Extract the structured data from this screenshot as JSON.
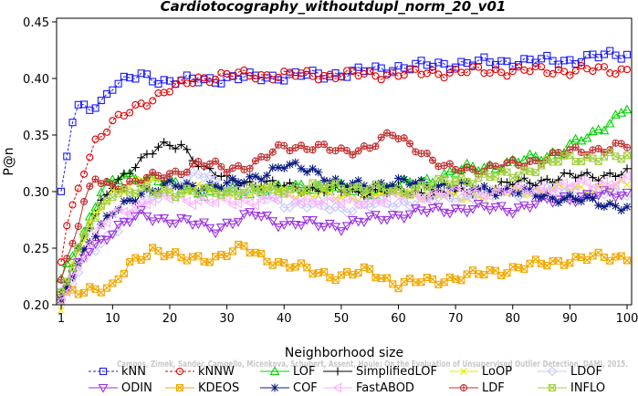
{
  "chart_data": {
    "type": "line",
    "title": "Cardiotocography_withoutdupl_norm_20_v01",
    "xlabel": "Neighborhood size",
    "ylabel": "P@n",
    "xlim": [
      1,
      100
    ],
    "ylim": [
      0.2,
      0.45
    ],
    "x_ticks": [
      "1",
      "10",
      "20",
      "30",
      "40",
      "50",
      "60",
      "70",
      "80",
      "90",
      "100"
    ],
    "y_ticks": [
      "0.20",
      "0.25",
      "0.30",
      "0.35",
      "0.40",
      "0.45"
    ],
    "grid": false,
    "legend_position": "bottom",
    "watermark": "Campos, Zimek, Sander, Campello, Micenkova, Schubert, Assent, Houle: On the Evaluation of Unsupervised Outlier Detection, DAMI, 2015.",
    "series": [
      {
        "name": "kNN",
        "color": "#1a1aff",
        "marker": "square",
        "dashed": true,
        "anchors": [
          [
            1,
            0.296
          ],
          [
            2,
            0.33
          ],
          [
            3,
            0.362
          ],
          [
            4,
            0.374
          ],
          [
            6,
            0.375
          ],
          [
            8,
            0.38
          ],
          [
            10,
            0.393
          ],
          [
            15,
            0.403
          ],
          [
            20,
            0.397
          ],
          [
            30,
            0.4
          ],
          [
            40,
            0.402
          ],
          [
            50,
            0.404
          ],
          [
            60,
            0.41
          ],
          [
            70,
            0.413
          ],
          [
            80,
            0.415
          ],
          [
            90,
            0.416
          ],
          [
            96,
            0.42
          ],
          [
            100,
            0.422
          ]
        ]
      },
      {
        "name": "kNNW",
        "color": "#e00000",
        "marker": "circle",
        "dashed": true,
        "anchors": [
          [
            1,
            0.238
          ],
          [
            2,
            0.27
          ],
          [
            3,
            0.285
          ],
          [
            5,
            0.32
          ],
          [
            7,
            0.345
          ],
          [
            10,
            0.36
          ],
          [
            15,
            0.378
          ],
          [
            20,
            0.39
          ],
          [
            25,
            0.4
          ],
          [
            30,
            0.403
          ],
          [
            40,
            0.403
          ],
          [
            50,
            0.403
          ],
          [
            60,
            0.404
          ],
          [
            70,
            0.406
          ],
          [
            80,
            0.407
          ],
          [
            90,
            0.407
          ],
          [
            100,
            0.408
          ]
        ]
      },
      {
        "name": "LOF",
        "color": "#00d000",
        "marker": "triangle-up",
        "dashed": false,
        "anchors": [
          [
            1,
            0.222
          ],
          [
            3,
            0.245
          ],
          [
            5,
            0.265
          ],
          [
            8,
            0.3
          ],
          [
            12,
            0.315
          ],
          [
            18,
            0.31
          ],
          [
            25,
            0.3
          ],
          [
            35,
            0.3
          ],
          [
            45,
            0.305
          ],
          [
            55,
            0.3
          ],
          [
            65,
            0.31
          ],
          [
            72,
            0.32
          ],
          [
            80,
            0.325
          ],
          [
            88,
            0.335
          ],
          [
            94,
            0.35
          ],
          [
            100,
            0.375
          ]
        ]
      },
      {
        "name": "SimplifiedLOF",
        "color": "#000000",
        "marker": "plus",
        "dashed": false,
        "anchors": [
          [
            1,
            0.21
          ],
          [
            3,
            0.238
          ],
          [
            6,
            0.27
          ],
          [
            10,
            0.305
          ],
          [
            14,
            0.325
          ],
          [
            18,
            0.338
          ],
          [
            22,
            0.342
          ],
          [
            26,
            0.32
          ],
          [
            30,
            0.31
          ],
          [
            40,
            0.305
          ],
          [
            50,
            0.3
          ],
          [
            60,
            0.3
          ],
          [
            70,
            0.298
          ],
          [
            80,
            0.307
          ],
          [
            90,
            0.313
          ],
          [
            100,
            0.316
          ]
        ]
      },
      {
        "name": "LoOP",
        "color": "#e8e800",
        "marker": "cross",
        "dashed": false,
        "anchors": [
          [
            1,
            0.2
          ],
          [
            3,
            0.235
          ],
          [
            6,
            0.27
          ],
          [
            10,
            0.3
          ],
          [
            15,
            0.31
          ],
          [
            20,
            0.305
          ],
          [
            30,
            0.3
          ],
          [
            40,
            0.3
          ],
          [
            50,
            0.295
          ],
          [
            60,
            0.3
          ],
          [
            70,
            0.295
          ],
          [
            80,
            0.3
          ],
          [
            90,
            0.302
          ],
          [
            100,
            0.305
          ]
        ]
      },
      {
        "name": "LDOF",
        "color": "#c8c8ff",
        "marker": "diamond",
        "dashed": false,
        "anchors": [
          [
            1,
            0.205
          ],
          [
            3,
            0.22
          ],
          [
            6,
            0.245
          ],
          [
            10,
            0.265
          ],
          [
            15,
            0.285
          ],
          [
            20,
            0.305
          ],
          [
            25,
            0.315
          ],
          [
            30,
            0.305
          ],
          [
            40,
            0.29
          ],
          [
            50,
            0.285
          ],
          [
            60,
            0.29
          ],
          [
            70,
            0.295
          ],
          [
            80,
            0.3
          ],
          [
            90,
            0.3
          ],
          [
            100,
            0.298
          ]
        ]
      },
      {
        "name": "ODIN",
        "color": "#9a30e0",
        "marker": "triangle-down",
        "dashed": false,
        "anchors": [
          [
            1,
            0.205
          ],
          [
            3,
            0.225
          ],
          [
            6,
            0.25
          ],
          [
            10,
            0.265
          ],
          [
            15,
            0.28
          ],
          [
            20,
            0.275
          ],
          [
            28,
            0.268
          ],
          [
            35,
            0.28
          ],
          [
            40,
            0.272
          ],
          [
            50,
            0.27
          ],
          [
            60,
            0.28
          ],
          [
            70,
            0.285
          ],
          [
            80,
            0.285
          ],
          [
            90,
            0.295
          ],
          [
            100,
            0.298
          ]
        ]
      },
      {
        "name": "KDEOS",
        "color": "#f0a800",
        "marker": "square-x",
        "dashed": false,
        "anchors": [
          [
            1,
            0.205
          ],
          [
            3,
            0.21
          ],
          [
            6,
            0.215
          ],
          [
            10,
            0.215
          ],
          [
            13,
            0.235
          ],
          [
            17,
            0.25
          ],
          [
            22,
            0.24
          ],
          [
            28,
            0.242
          ],
          [
            33,
            0.25
          ],
          [
            40,
            0.235
          ],
          [
            50,
            0.225
          ],
          [
            55,
            0.23
          ],
          [
            60,
            0.218
          ],
          [
            67,
            0.222
          ],
          [
            72,
            0.225
          ],
          [
            80,
            0.232
          ],
          [
            90,
            0.24
          ],
          [
            100,
            0.243
          ]
        ]
      },
      {
        "name": "COF",
        "color": "#0a1a80",
        "marker": "asterisk",
        "dashed": false,
        "anchors": [
          [
            1,
            0.2
          ],
          [
            3,
            0.228
          ],
          [
            6,
            0.258
          ],
          [
            10,
            0.28
          ],
          [
            15,
            0.3
          ],
          [
            20,
            0.305
          ],
          [
            30,
            0.305
          ],
          [
            40,
            0.322
          ],
          [
            45,
            0.32
          ],
          [
            50,
            0.305
          ],
          [
            60,
            0.308
          ],
          [
            70,
            0.305
          ],
          [
            80,
            0.3
          ],
          [
            88,
            0.295
          ],
          [
            95,
            0.29
          ],
          [
            100,
            0.287
          ]
        ]
      },
      {
        "name": "FastABOD",
        "color": "#ffb0ff",
        "marker": "triangle-left",
        "dashed": false,
        "anchors": [
          [
            1,
            0.205
          ],
          [
            3,
            0.225
          ],
          [
            6,
            0.255
          ],
          [
            10,
            0.28
          ],
          [
            15,
            0.29
          ],
          [
            20,
            0.295
          ],
          [
            30,
            0.29
          ],
          [
            40,
            0.295
          ],
          [
            50,
            0.29
          ],
          [
            60,
            0.295
          ],
          [
            70,
            0.3
          ],
          [
            80,
            0.3
          ],
          [
            90,
            0.305
          ],
          [
            100,
            0.31
          ]
        ]
      },
      {
        "name": "LDF",
        "color": "#c03030",
        "marker": "circle-plus",
        "dashed": false,
        "anchors": [
          [
            1,
            0.225
          ],
          [
            3,
            0.255
          ],
          [
            5,
            0.29
          ],
          [
            7,
            0.31
          ],
          [
            10,
            0.305
          ],
          [
            15,
            0.31
          ],
          [
            20,
            0.315
          ],
          [
            25,
            0.325
          ],
          [
            30,
            0.32
          ],
          [
            35,
            0.325
          ],
          [
            40,
            0.34
          ],
          [
            45,
            0.34
          ],
          [
            50,
            0.335
          ],
          [
            55,
            0.34
          ],
          [
            59,
            0.35
          ],
          [
            63,
            0.34
          ],
          [
            68,
            0.32
          ],
          [
            75,
            0.32
          ],
          [
            82,
            0.325
          ],
          [
            90,
            0.335
          ],
          [
            100,
            0.34
          ]
        ]
      },
      {
        "name": "INFLO",
        "color": "#a0d040",
        "marker": "square-x",
        "dashed": false,
        "anchors": [
          [
            1,
            0.21
          ],
          [
            3,
            0.235
          ],
          [
            6,
            0.27
          ],
          [
            10,
            0.3
          ],
          [
            15,
            0.3
          ],
          [
            20,
            0.3
          ],
          [
            30,
            0.3
          ],
          [
            40,
            0.302
          ],
          [
            50,
            0.305
          ],
          [
            60,
            0.3
          ],
          [
            70,
            0.31
          ],
          [
            80,
            0.315
          ],
          [
            90,
            0.33
          ],
          [
            100,
            0.33
          ]
        ]
      }
    ]
  }
}
